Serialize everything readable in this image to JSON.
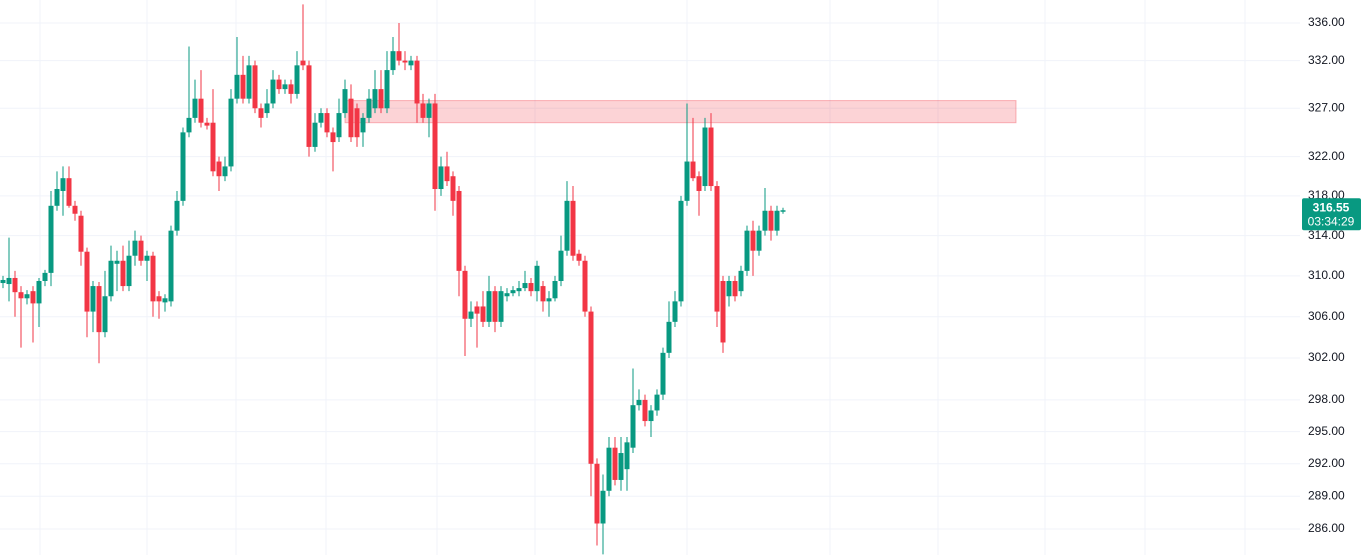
{
  "chart_data": {
    "type": "candlestick",
    "ylim": [
      283.64,
      338.47
    ],
    "log_scale": true,
    "grid": true,
    "up_color": "#089981",
    "down_color": "#f23645",
    "yticks": [
      {
        "value": 336,
        "label": "336.00"
      },
      {
        "value": 332,
        "label": "332.00"
      },
      {
        "value": 327,
        "label": "327.00"
      },
      {
        "value": 322,
        "label": "322.00"
      },
      {
        "value": 318,
        "label": "318.00"
      },
      {
        "value": 314,
        "label": "314.00"
      },
      {
        "value": 310,
        "label": "310.00"
      },
      {
        "value": 306,
        "label": "306.00"
      },
      {
        "value": 302,
        "label": "302.00"
      },
      {
        "value": 298,
        "label": "298.00"
      },
      {
        "value": 295,
        "label": "295.00"
      },
      {
        "value": 292,
        "label": "292.00"
      },
      {
        "value": 289,
        "label": "289.00"
      },
      {
        "value": 286,
        "label": "286.00"
      }
    ],
    "last_price": 316.55,
    "countdown": "03:34:29",
    "zone": {
      "low": 325.5,
      "high": 327.8,
      "color": "rgba(242,54,69,0.22)"
    },
    "ohlc": [
      [
        309.3,
        310,
        308.8,
        309.6
      ],
      [
        309.2,
        313.8,
        307.5,
        309.8
      ],
      [
        309.8,
        310.5,
        306,
        308.4
      ],
      [
        308.4,
        309,
        303,
        307.8
      ],
      [
        307.8,
        308.6,
        307.2,
        308.2
      ],
      [
        308.5,
        309,
        303.5,
        307.3
      ],
      [
        307.3,
        309.8,
        305,
        309.5
      ],
      [
        309.5,
        310.6,
        309,
        310.3
      ],
      [
        310.3,
        318.5,
        309,
        317
      ],
      [
        317,
        320.5,
        316.5,
        318.7
      ],
      [
        318.5,
        321,
        316,
        319.8
      ],
      [
        319.8,
        321,
        316.8,
        317
      ],
      [
        317,
        317.5,
        315.5,
        316.2
      ],
      [
        316,
        316.5,
        311,
        312.4
      ],
      [
        312.4,
        312.8,
        304,
        306.5
      ],
      [
        306.5,
        309.5,
        304.5,
        309
      ],
      [
        309,
        309.4,
        301.5,
        304.5
      ],
      [
        304.5,
        310.5,
        304,
        308
      ],
      [
        308,
        313,
        307.5,
        311.5
      ],
      [
        311.2,
        312.5,
        308.5,
        311.5
      ],
      [
        311.5,
        313,
        308.5,
        309
      ],
      [
        309,
        313.5,
        308.5,
        312
      ],
      [
        312,
        314.5,
        311,
        313.5
      ],
      [
        313.5,
        314,
        311,
        311.5
      ],
      [
        311.5,
        312.5,
        309.5,
        312
      ],
      [
        312,
        312.4,
        306,
        307.5
      ],
      [
        308,
        308.5,
        305.8,
        307.5
      ],
      [
        307.4,
        308.2,
        306.5,
        307.8
      ],
      [
        307.5,
        315,
        307,
        314.5
      ],
      [
        314.5,
        318.5,
        314,
        317.5
      ],
      [
        317.5,
        325,
        317,
        324.5
      ],
      [
        324.5,
        333.5,
        324,
        326
      ],
      [
        326,
        330,
        325.5,
        328
      ],
      [
        328,
        331,
        325,
        325.5
      ],
      [
        325.5,
        326,
        324.8,
        325.2
      ],
      [
        325.5,
        329,
        320,
        320.5
      ],
      [
        321.5,
        322,
        318.5,
        320
      ],
      [
        320,
        322,
        319.5,
        321
      ],
      [
        321,
        329,
        320.5,
        328
      ],
      [
        328,
        334.5,
        327.5,
        330.5
      ],
      [
        330.5,
        332.5,
        327.5,
        328
      ],
      [
        328,
        332.5,
        327.5,
        331.5
      ],
      [
        331.5,
        332,
        326.5,
        327
      ],
      [
        327,
        327.5,
        325,
        326
      ],
      [
        326.5,
        329,
        326,
        327.5
      ],
      [
        327.5,
        331,
        327,
        330
      ],
      [
        330,
        330.5,
        328.5,
        329
      ],
      [
        329,
        330,
        328.5,
        329.5
      ],
      [
        329.5,
        330,
        327.5,
        328.5
      ],
      [
        328.5,
        333,
        328,
        331.5
      ],
      [
        332,
        338,
        331,
        331.5
      ],
      [
        331.5,
        332,
        322,
        323
      ],
      [
        323,
        326.5,
        322.5,
        325.5
      ],
      [
        325.5,
        327,
        325,
        326.5
      ],
      [
        326.5,
        327,
        324,
        324.5
      ],
      [
        324.5,
        325,
        320.5,
        323.5
      ],
      [
        324,
        328,
        323.5,
        326.5
      ],
      [
        326.5,
        330,
        326,
        329
      ],
      [
        328,
        329.5,
        323.5,
        324
      ],
      [
        327,
        327.5,
        323,
        324
      ],
      [
        324.5,
        326.5,
        323,
        326
      ],
      [
        326,
        329,
        325.5,
        328
      ],
      [
        327,
        331,
        326.5,
        329
      ],
      [
        329,
        331,
        326.5,
        327
      ],
      [
        327,
        333,
        326.5,
        331
      ],
      [
        331,
        334.5,
        330.5,
        333
      ],
      [
        333,
        336,
        331.5,
        332
      ],
      [
        332,
        333,
        331,
        331.8
      ],
      [
        331.5,
        332.5,
        331,
        332
      ],
      [
        332,
        332.5,
        325.5,
        327.5
      ],
      [
        327.5,
        328.5,
        325.5,
        326
      ],
      [
        326,
        328,
        324,
        327.5
      ],
      [
        327.5,
        328.5,
        316.5,
        318.7
      ],
      [
        318.7,
        322,
        318,
        321
      ],
      [
        321,
        322.5,
        319,
        319.5
      ],
      [
        320,
        320.5,
        316,
        317.5
      ],
      [
        318.5,
        319,
        308,
        310.5
      ],
      [
        310.5,
        311,
        302.2,
        305.8
      ],
      [
        305.8,
        307.5,
        305,
        306.5
      ],
      [
        307,
        307.5,
        303,
        306.3
      ],
      [
        307,
        308.5,
        305,
        305.5
      ],
      [
        305.5,
        310,
        305,
        308.5
      ],
      [
        308.5,
        309,
        304.5,
        305.5
      ],
      [
        305.5,
        309,
        305,
        308.5
      ],
      [
        308,
        308.8,
        307.5,
        308.3
      ],
      [
        308.3,
        309,
        308,
        308.6
      ],
      [
        308.5,
        309.5,
        308,
        308.8
      ],
      [
        308.8,
        310.5,
        308.5,
        309.3
      ],
      [
        309.3,
        309.8,
        308,
        308.5
      ],
      [
        308.5,
        311.5,
        307.5,
        311
      ],
      [
        309,
        309.5,
        306.5,
        307.5
      ],
      [
        307.5,
        308.5,
        306,
        307.8
      ],
      [
        307.8,
        310,
        307.5,
        309.5
      ],
      [
        309.5,
        314,
        309,
        312.5
      ],
      [
        312.5,
        319.5,
        312,
        317.5
      ],
      [
        317.5,
        319,
        311.5,
        312
      ],
      [
        312.2,
        312.6,
        311,
        311.5
      ],
      [
        311.5,
        312,
        306,
        306.5
      ],
      [
        306.5,
        307,
        289,
        292
      ],
      [
        292,
        292.5,
        284.5,
        286.5
      ],
      [
        286.5,
        291,
        283.7,
        289.5
      ],
      [
        289.5,
        294.5,
        289,
        293.5
      ],
      [
        293.5,
        294.5,
        290,
        290.5
      ],
      [
        290.5,
        294.5,
        289.5,
        293
      ],
      [
        291.5,
        294.5,
        289.5,
        294
      ],
      [
        293.5,
        301,
        293,
        297.5
      ],
      [
        297.5,
        299,
        297,
        298
      ],
      [
        298,
        298.5,
        295.5,
        296
      ],
      [
        296,
        297.5,
        294.5,
        297
      ],
      [
        297,
        299,
        296.5,
        298.5
      ],
      [
        298.5,
        303,
        298,
        302.5
      ],
      [
        302.5,
        307.5,
        302,
        305.5
      ],
      [
        305.5,
        308.5,
        305,
        307.5
      ],
      [
        307.5,
        318,
        307,
        317.5
      ],
      [
        317.5,
        327.5,
        317,
        321.5
      ],
      [
        321.5,
        326,
        319.5,
        319.8
      ],
      [
        320,
        320.5,
        316,
        318.5
      ],
      [
        319,
        326,
        318.5,
        325
      ],
      [
        325,
        326.5,
        318.5,
        319
      ],
      [
        319,
        319.5,
        305,
        306.5
      ],
      [
        309.5,
        310,
        302.5,
        303.5
      ],
      [
        308,
        310,
        307,
        309.5
      ],
      [
        309.5,
        310,
        307.5,
        308
      ],
      [
        308.5,
        311,
        308,
        310.5
      ],
      [
        310.5,
        315,
        310,
        314.5
      ],
      [
        314.5,
        315.5,
        310,
        312.5
      ],
      [
        312.5,
        315,
        312,
        314.5
      ],
      [
        314.5,
        318.8,
        314,
        316.5
      ],
      [
        316.5,
        317,
        313.5,
        314.5
      ],
      [
        314.5,
        317,
        314,
        316.5
      ],
      [
        316.4,
        316.8,
        316.2,
        316.55
      ]
    ]
  }
}
